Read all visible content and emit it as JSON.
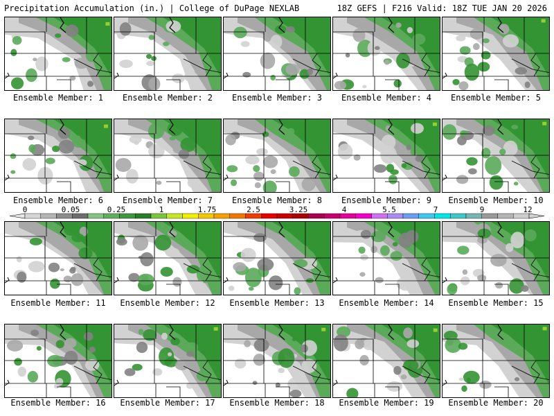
{
  "header": {
    "left_title": "Precipitation Accumulation (in.) | College of DuPage NEXLAB",
    "right_title": "18Z GEFS | F216 Valid: 18Z TUE JAN 20 2026"
  },
  "caption_prefix": "Ensemble Member: ",
  "members": [
    {
      "number": "1"
    },
    {
      "number": "2"
    },
    {
      "number": "3"
    },
    {
      "number": "4"
    },
    {
      "number": "5"
    },
    {
      "number": "6"
    },
    {
      "number": "7"
    },
    {
      "number": "8"
    },
    {
      "number": "9"
    },
    {
      "number": "10"
    },
    {
      "number": "11"
    },
    {
      "number": "12"
    },
    {
      "number": "13"
    },
    {
      "number": "14"
    },
    {
      "number": "15"
    },
    {
      "number": "16"
    },
    {
      "number": "17"
    },
    {
      "number": "18"
    },
    {
      "number": "19"
    },
    {
      "number": "20"
    }
  ],
  "colorbar": {
    "labels": [
      "0",
      "0.05",
      "0.25",
      "1",
      "1.75",
      "2.5",
      "3.25",
      "4",
      "5.5",
      "7",
      "9",
      "12"
    ],
    "colors": [
      "#d6d6d6",
      "#b4b4b4",
      "#8c8c8c",
      "#6e6e6e",
      "#86c486",
      "#5fae5f",
      "#3f963f",
      "#2a7e2a",
      "#7cc43c",
      "#c8e628",
      "#f0f000",
      "#f4c800",
      "#f4a000",
      "#f07800",
      "#f03c00",
      "#e60000",
      "#c80000",
      "#aa0000",
      "#aa0050",
      "#c8006e",
      "#e6009a",
      "#f000c8",
      "#d26ef0",
      "#aa8cf0",
      "#6e9cf0",
      "#3cc8f0",
      "#00e6e6",
      "#3cc8c8",
      "#78b4b4",
      "#9a9a9a",
      "#b4b4b4",
      "#cdcdcd"
    ],
    "palette": {
      "light_gray": "#d2d2d2",
      "mid_gray": "#a8a8a8",
      "dark_gray": "#828282",
      "light_green": "#5aaa5a",
      "green": "#339433",
      "dark_green": "#1e7e1e",
      "lime": "#9acd32"
    }
  }
}
